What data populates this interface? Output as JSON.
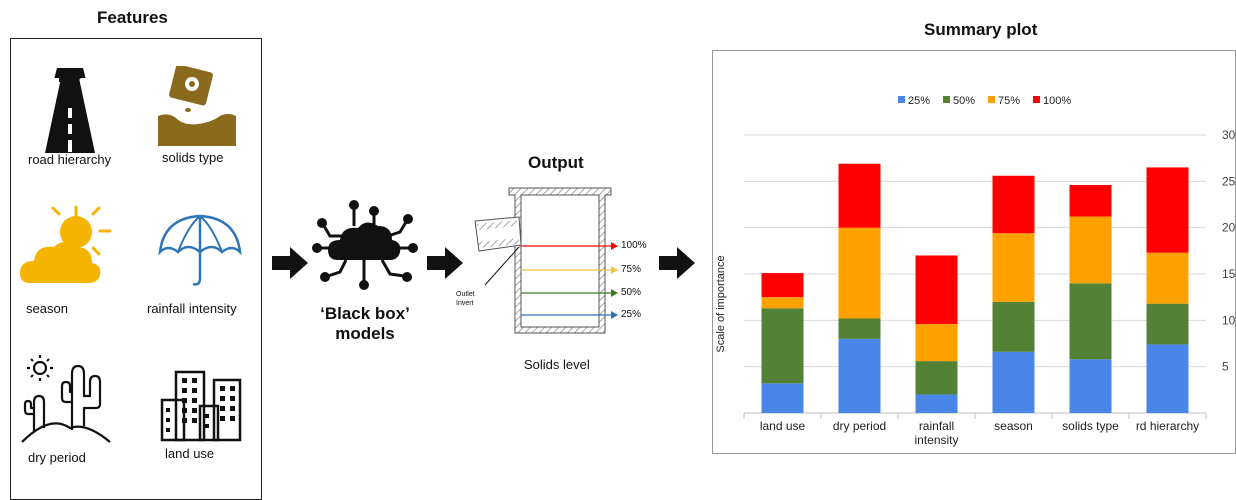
{
  "features": {
    "title": "Features",
    "items": [
      {
        "label": "road hierarchy",
        "icon": "road-icon"
      },
      {
        "label": "solids type",
        "icon": "seed-packet-icon"
      },
      {
        "label": "season",
        "icon": "sun-cloud-icon"
      },
      {
        "label": "rainfall intensity",
        "icon": "umbrella-icon"
      },
      {
        "label": "dry period",
        "icon": "cactus-desert-icon"
      },
      {
        "label": "land use",
        "icon": "buildings-icon"
      }
    ]
  },
  "model": {
    "line1": "‘Black box’",
    "line2": "models",
    "icon": "ai-cloud-network-icon"
  },
  "output": {
    "title": "Output",
    "caption": "Solids level",
    "outlet_label_1": "Outlet",
    "outlet_label_2": "Invert",
    "levels": [
      {
        "label": "100%",
        "color": "#ff0000"
      },
      {
        "label": "75%",
        "color": "#f5c242"
      },
      {
        "label": "50%",
        "color": "#3a7d22"
      },
      {
        "label": "25%",
        "color": "#2e75b6"
      }
    ]
  },
  "summary": {
    "title": "Summary plot"
  },
  "chart_data": {
    "type": "bar",
    "stacked": true,
    "categories": [
      "land use",
      "dry period",
      "rainfall intensity",
      "season",
      "solids type",
      "rd hierarchy"
    ],
    "category_lines": [
      [
        "land use"
      ],
      [
        "dry period"
      ],
      [
        "rainfall",
        "intensity"
      ],
      [
        "season"
      ],
      [
        "solids type"
      ],
      [
        "rd hierarchy"
      ]
    ],
    "series": [
      {
        "name": "25%",
        "color": "#4a86e8",
        "values": [
          3.2,
          8.0,
          2.0,
          6.6,
          5.8,
          7.4
        ]
      },
      {
        "name": "50%",
        "color": "#538135",
        "values": [
          8.1,
          2.2,
          3.6,
          5.4,
          8.2,
          4.4
        ]
      },
      {
        "name": "75%",
        "color": "#ffa200",
        "values": [
          1.2,
          9.8,
          4.0,
          7.4,
          7.2,
          5.5
        ]
      },
      {
        "name": "100%",
        "color": "#ff0000",
        "values": [
          2.6,
          6.9,
          7.4,
          6.2,
          3.4,
          9.2
        ]
      }
    ],
    "ylabel": "Scale of importance",
    "xlabel": "",
    "ylim": [
      0,
      30
    ],
    "yticks": [
      5,
      10,
      15,
      20,
      25,
      30
    ],
    "y_axis_side": "right",
    "grid": true,
    "legend_position": "top"
  }
}
